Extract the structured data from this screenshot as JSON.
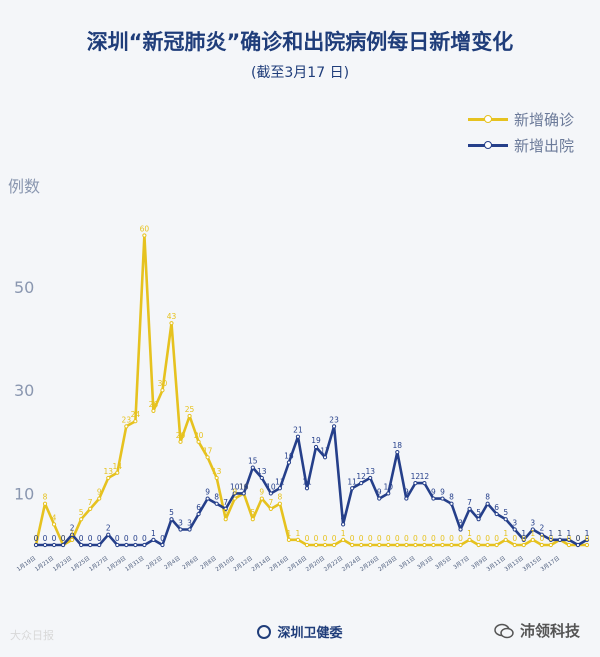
{
  "header": {
    "title": "深圳“新冠肺炎”确诊和出院病例每日新增变化",
    "subtitle": "(截至3月17 日)"
  },
  "footer": {
    "org": "深圳卫健委",
    "watermark_left": "大众日报",
    "watermark_right": "沛领科技"
  },
  "chart_data": {
    "type": "line",
    "title": "深圳“新冠肺炎”确诊和出院病例每日新增变化",
    "subtitle": "(截至3月17 日)",
    "ylabel": "例数",
    "ylim": [
      0,
      63
    ],
    "yticks": [
      10,
      30,
      50
    ],
    "grid": false,
    "legend_position": "top-right",
    "xtick_labels": [
      "1月19日",
      "1月21日",
      "1月23日",
      "1月25日",
      "1月27日",
      "1月29日",
      "1月31日",
      "2月2日",
      "2月4日",
      "2月6日",
      "2月8日",
      "2月10日",
      "2月12日",
      "2月14日",
      "2月16日",
      "2月18日",
      "2月20日",
      "2月22日",
      "2月24日",
      "2月26日",
      "2月28日",
      "3月1日",
      "3月3日",
      "3月5日",
      "3月7日",
      "3月9日",
      "3月11日",
      "3月13日",
      "3月15日",
      "3月17日"
    ],
    "series": [
      {
        "name": "新增确诊",
        "color": "#e6c21f",
        "values": [
          0,
          8,
          4,
          0,
          1,
          5,
          7,
          9,
          13,
          14,
          23,
          24,
          60,
          26,
          30,
          43,
          20,
          25,
          20,
          17,
          13,
          5,
          9,
          10,
          5,
          9,
          7,
          8,
          1,
          1,
          0,
          0,
          0,
          0,
          1,
          0,
          0,
          0,
          0,
          0,
          0,
          0,
          0,
          0,
          0,
          0,
          0,
          0,
          1,
          0,
          0,
          0,
          1,
          0,
          0,
          1,
          0,
          0,
          1,
          0,
          0,
          0
        ]
      },
      {
        "name": "新增出院",
        "color": "#253f8a",
        "values": [
          0,
          0,
          0,
          0,
          2,
          0,
          0,
          0,
          2,
          0,
          0,
          0,
          0,
          1,
          0,
          5,
          3,
          3,
          6,
          9,
          8,
          7,
          10,
          10,
          15,
          13,
          10,
          11,
          16,
          21,
          11,
          19,
          17,
          23,
          4,
          11,
          12,
          13,
          9,
          10,
          18,
          9,
          12,
          12,
          9,
          9,
          8,
          3,
          7,
          5,
          8,
          6,
          5,
          3,
          1,
          3,
          2,
          1,
          1,
          1,
          0,
          1
        ]
      }
    ]
  }
}
